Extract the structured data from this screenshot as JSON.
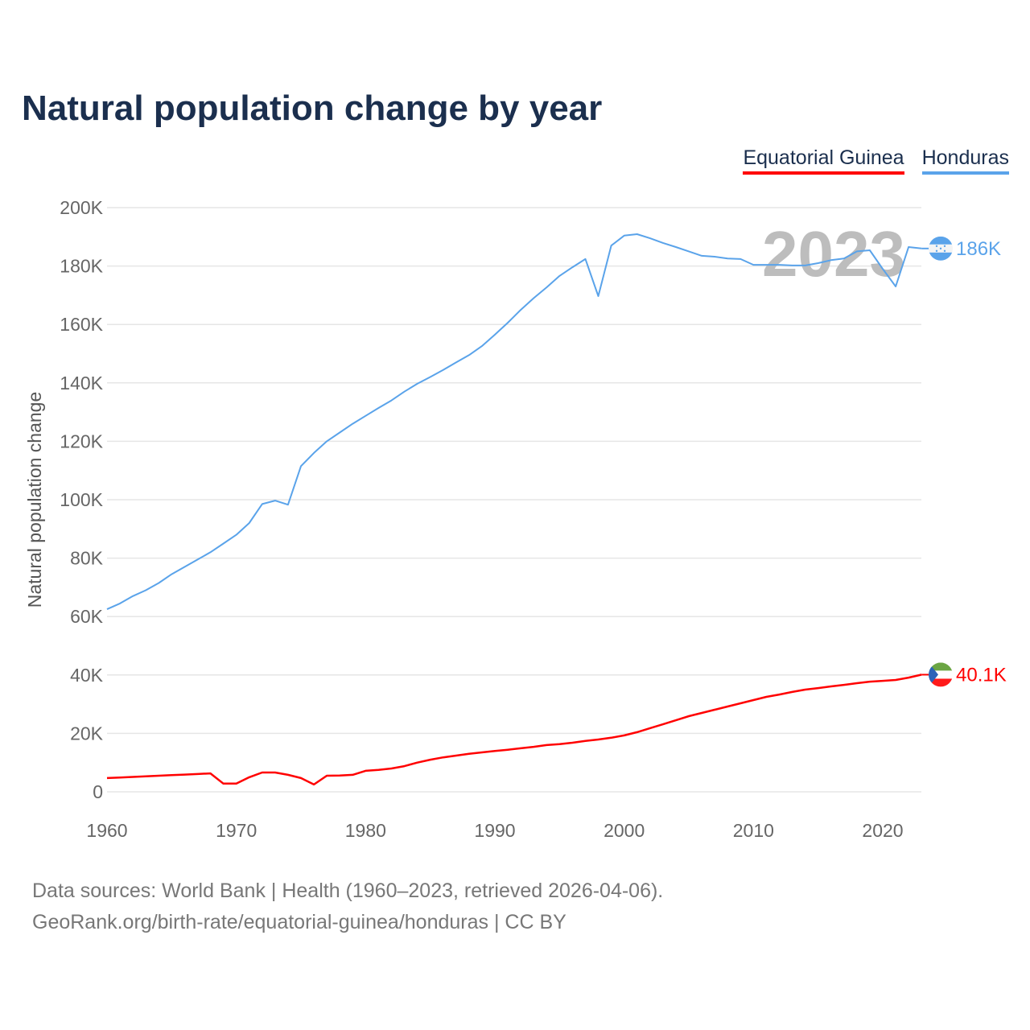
{
  "title": "Natural population change by year",
  "footer": {
    "line1": "Data sources: World Bank | Health (1960–2023, retrieved 2026-04-06).",
    "line2": "GeoRank.org/birth-rate/equatorial-guinea/honduras | CC BY"
  },
  "chart_data": {
    "type": "line",
    "title": "Natural population change by year",
    "xlabel": "",
    "ylabel": "Natural population change",
    "xlim": [
      1960,
      2023
    ],
    "ylim": [
      0,
      200000
    ],
    "grid": true,
    "legend_placement": "top-right",
    "current_year_label": "2023",
    "x_ticks": [
      "1960",
      "1970",
      "1980",
      "1990",
      "2000",
      "2010",
      "2020"
    ],
    "y_ticks": [
      "0",
      "20K",
      "40K",
      "60K",
      "80K",
      "100K",
      "120K",
      "140K",
      "160K",
      "180K",
      "200K"
    ],
    "x": [
      1960,
      1961,
      1962,
      1963,
      1964,
      1965,
      1966,
      1967,
      1968,
      1969,
      1970,
      1971,
      1972,
      1973,
      1974,
      1975,
      1976,
      1977,
      1978,
      1979,
      1980,
      1981,
      1982,
      1983,
      1984,
      1985,
      1986,
      1987,
      1988,
      1989,
      1990,
      1991,
      1992,
      1993,
      1994,
      1995,
      1996,
      1997,
      1998,
      1999,
      2000,
      2001,
      2002,
      2003,
      2004,
      2005,
      2006,
      2007,
      2008,
      2009,
      2010,
      2011,
      2012,
      2013,
      2014,
      2015,
      2016,
      2017,
      2018,
      2019,
      2020,
      2021,
      2022,
      2023
    ],
    "series": [
      {
        "name": "Equatorial Guinea",
        "color": "#ff0000",
        "end_label": "40.1K",
        "flag": "equatorial-guinea-flag",
        "values": [
          4700,
          4900,
          5100,
          5300,
          5500,
          5700,
          5900,
          6100,
          6300,
          2800,
          2800,
          5000,
          6600,
          6600,
          5800,
          4700,
          2500,
          5500,
          5600,
          5800,
          7200,
          7500,
          8000,
          8800,
          10000,
          11000,
          11800,
          12400,
          13000,
          13500,
          14000,
          14400,
          14900,
          15400,
          16000,
          16300,
          16800,
          17400,
          17900,
          18500,
          19300,
          20400,
          21800,
          23100,
          24500,
          25900,
          27000,
          28100,
          29200,
          30300,
          31400,
          32500,
          33300,
          34200,
          35000,
          35500,
          36100,
          36600,
          37200,
          37700,
          38000,
          38300,
          39100,
          40100
        ]
      },
      {
        "name": "Honduras",
        "color": "#5aa3ea",
        "end_label": "186K",
        "flag": "honduras-flag",
        "values": [
          62500,
          64500,
          67000,
          69000,
          71500,
          74500,
          77000,
          79500,
          82000,
          85000,
          88000,
          92000,
          98500,
          99700,
          98300,
          111500,
          116000,
          120000,
          123000,
          126000,
          128700,
          131400,
          134000,
          137000,
          139700,
          142000,
          144400,
          147000,
          149500,
          152600,
          156500,
          160600,
          165000,
          169000,
          172700,
          176600,
          179600,
          182400,
          169700,
          187000,
          190400,
          190900,
          189500,
          187900,
          186500,
          185000,
          183500,
          183200,
          182600,
          182400,
          180400,
          180400,
          180400,
          180200,
          180200,
          181000,
          182000,
          182600,
          185000,
          185400,
          179000,
          173000,
          186500,
          186000
        ]
      }
    ]
  }
}
